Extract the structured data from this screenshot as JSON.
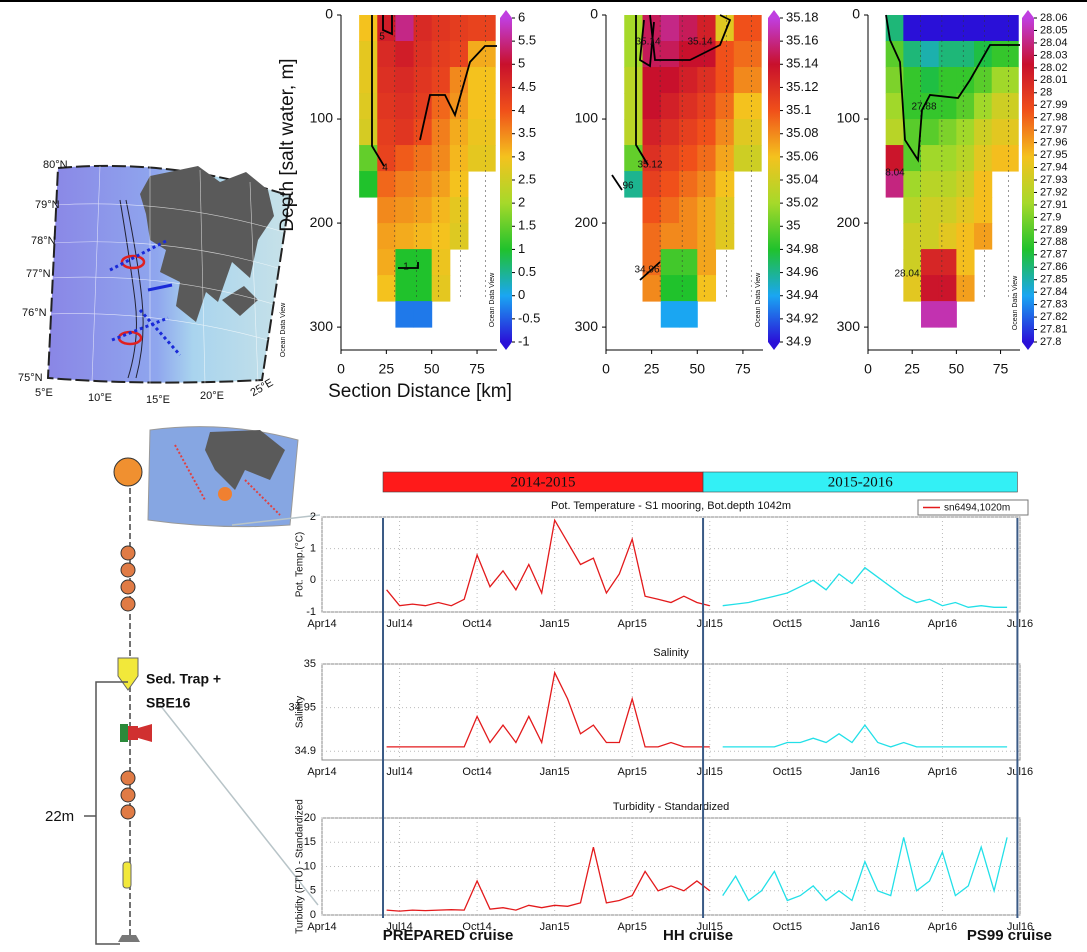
{
  "map": {
    "lat_labels": [
      "80°N",
      "79°N",
      "78°N",
      "77°N",
      "76°N",
      "75°N"
    ],
    "lon_labels": [
      "5°E",
      "10°E",
      "15°E",
      "20°E",
      "25°E"
    ],
    "watermark": "Ocean Data View"
  },
  "mooring": {
    "labels": [
      "Sed. Trap +",
      "SBE16"
    ],
    "length_label": "22m"
  },
  "chart_data": [
    {
      "type": "heatmap",
      "ylabel": "Depth [salt water, m]",
      "xlabel": "Section Distance [km]",
      "watermark": "Ocean Data View",
      "xlim": [
        0,
        86
      ],
      "ylim": [
        0,
        322
      ],
      "xticks": [
        0,
        25,
        50,
        75
      ],
      "yticks": [
        0,
        100,
        200,
        300
      ],
      "x_edges": [
        10,
        20,
        30,
        40,
        50,
        60,
        70,
        85
      ],
      "y_edges": [
        0,
        25,
        50,
        75,
        100,
        125,
        150,
        175,
        200,
        225,
        250,
        275,
        300
      ],
      "values": [
        [
          3.0,
          4.8,
          5.5,
          4.6,
          4.4,
          4.3,
          4.2
        ],
        [
          2.8,
          4.6,
          4.8,
          4.5,
          4.3,
          4.2,
          3.2
        ],
        [
          2.8,
          4.5,
          4.6,
          4.4,
          4.2,
          3.5,
          3.0
        ],
        [
          2.7,
          4.4,
          4.5,
          4.3,
          3.8,
          3.4,
          3.0
        ],
        [
          2.6,
          4.3,
          4.4,
          4.1,
          3.6,
          3.2,
          2.9
        ],
        [
          1.5,
          4.2,
          3.9,
          3.7,
          3.5,
          3.1,
          2.8
        ],
        [
          1.0,
          3.8,
          3.6,
          3.5,
          3.3,
          3.0,
          null
        ],
        [
          null,
          3.5,
          3.4,
          3.3,
          3.1,
          2.8,
          null
        ],
        [
          null,
          3.3,
          3.2,
          3.1,
          3.0,
          2.7,
          null
        ],
        [
          null,
          3.2,
          1.0,
          1.0,
          2.9,
          null,
          null
        ],
        [
          null,
          3.0,
          1.0,
          1.0,
          2.8,
          null,
          null
        ],
        [
          null,
          null,
          -0.3,
          -0.3,
          null,
          null,
          null
        ]
      ],
      "clim": [
        -1,
        6
      ],
      "cticks": [
        -1,
        -0.5,
        0,
        0.5,
        1,
        1.5,
        2,
        2.5,
        3,
        3.5,
        4,
        4.5,
        5,
        5.5,
        6
      ],
      "colorscale": [
        "#2a10d8",
        "#1aa6f2",
        "#20c22c",
        "#a6d92a",
        "#f4c21e",
        "#f0501a",
        "#c8102c",
        "#c03ee0"
      ],
      "contour_labels": [
        "5",
        "4",
        "1"
      ]
    },
    {
      "type": "heatmap",
      "watermark": "Ocean Data View",
      "xlim": [
        0,
        86
      ],
      "ylim": [
        0,
        322
      ],
      "xticks": [
        0,
        25,
        50,
        75
      ],
      "yticks": [
        0,
        100,
        200,
        300
      ],
      "x_edges": [
        10,
        20,
        30,
        40,
        50,
        60,
        70,
        85
      ],
      "y_edges": [
        0,
        25,
        50,
        75,
        100,
        125,
        150,
        175,
        200,
        225,
        250,
        275,
        300
      ],
      "values": [
        [
          35.02,
          35.15,
          35.16,
          35.15,
          35.13,
          35.05,
          35.1
        ],
        [
          35.02,
          35.15,
          35.15,
          35.14,
          35.14,
          35.1,
          35.09
        ],
        [
          35.03,
          35.14,
          35.14,
          35.13,
          35.12,
          35.1,
          35.08
        ],
        [
          35.03,
          35.14,
          35.13,
          35.12,
          35.11,
          35.09,
          35.06
        ],
        [
          35.03,
          35.13,
          35.12,
          35.11,
          35.1,
          35.08,
          35.05
        ],
        [
          35.0,
          35.12,
          35.11,
          35.1,
          35.09,
          35.07,
          35.04
        ],
        [
          34.96,
          35.11,
          35.1,
          35.09,
          35.08,
          35.06,
          null
        ],
        [
          null,
          35.1,
          35.09,
          35.08,
          35.07,
          35.05,
          null
        ],
        [
          null,
          35.09,
          35.08,
          35.08,
          35.07,
          35.05,
          null
        ],
        [
          null,
          35.09,
          34.99,
          34.99,
          35.07,
          null,
          null
        ],
        [
          null,
          35.08,
          34.98,
          34.98,
          35.06,
          null,
          null
        ],
        [
          null,
          null,
          34.94,
          34.94,
          null,
          null,
          null
        ]
      ],
      "clim": [
        34.9,
        35.18
      ],
      "cticks": [
        34.9,
        34.92,
        34.94,
        34.96,
        34.98,
        35,
        35.02,
        35.04,
        35.06,
        35.08,
        35.1,
        35.12,
        35.14,
        35.16,
        35.18
      ],
      "colorscale": [
        "#2a10d8",
        "#1aa6f2",
        "#20c22c",
        "#a6d92a",
        "#f4c21e",
        "#f0501a",
        "#c8102c",
        "#c03ee0"
      ],
      "contour_labels": [
        "35.14",
        "35.14",
        "35.12",
        "96",
        "34.96"
      ]
    },
    {
      "type": "heatmap",
      "watermark": "Ocean Data View",
      "xlim": [
        0,
        86
      ],
      "ylim": [
        0,
        322
      ],
      "xticks": [
        0,
        25,
        50,
        75
      ],
      "yticks": [
        0,
        100,
        200,
        300
      ],
      "x_edges": [
        10,
        20,
        30,
        40,
        50,
        60,
        70,
        85
      ],
      "y_edges": [
        0,
        25,
        50,
        75,
        100,
        125,
        150,
        175,
        200,
        225,
        250,
        275,
        300
      ],
      "values": [
        [
          27.86,
          27.8,
          27.8,
          27.8,
          27.8,
          27.8,
          27.8
        ],
        [
          27.89,
          27.86,
          27.85,
          27.86,
          27.86,
          27.87,
          27.88
        ],
        [
          27.9,
          27.88,
          27.87,
          27.88,
          27.88,
          27.89,
          27.91
        ],
        [
          27.91,
          27.88,
          27.88,
          27.88,
          27.89,
          27.91,
          27.93
        ],
        [
          27.92,
          27.89,
          27.89,
          27.9,
          27.91,
          27.93,
          27.94
        ],
        [
          28.02,
          27.89,
          27.91,
          27.91,
          27.92,
          27.94,
          27.95
        ],
        [
          28.04,
          27.91,
          27.92,
          27.92,
          27.93,
          27.95,
          null
        ],
        [
          null,
          27.92,
          27.93,
          27.93,
          27.94,
          27.95,
          null
        ],
        [
          null,
          27.93,
          27.93,
          27.94,
          27.95,
          27.96,
          null
        ],
        [
          null,
          27.93,
          28.01,
          28.01,
          27.95,
          null,
          null
        ],
        [
          null,
          27.94,
          28.02,
          28.02,
          27.96,
          null,
          null
        ],
        [
          null,
          null,
          28.05,
          28.05,
          null,
          null,
          null
        ]
      ],
      "clim": [
        27.8,
        28.06
      ],
      "cticks": [
        27.8,
        27.81,
        27.82,
        27.83,
        27.84,
        27.85,
        27.86,
        27.87,
        27.88,
        27.89,
        27.9,
        27.91,
        27.92,
        27.93,
        27.94,
        27.95,
        27.96,
        27.97,
        27.98,
        27.99,
        28,
        28.01,
        28.02,
        28.03,
        28.04,
        28.05,
        28.06
      ],
      "colorscale": [
        "#2a10d8",
        "#1aa6f2",
        "#20c22c",
        "#a6d92a",
        "#f4c21e",
        "#f0501a",
        "#c8102c",
        "#c03ee0"
      ],
      "contour_labels": [
        "27.88",
        "8.04",
        "28.04"
      ]
    },
    {
      "type": "line",
      "title": "Pot. Temperature - S1 mooring, Bot.depth 1042m",
      "ylabel": "Pot. Temp.(°C)",
      "xlim": [
        0,
        27
      ],
      "xticks": [
        {
          "value": 0,
          "label": "Apr14"
        },
        {
          "value": 3,
          "label": "Jul14"
        },
        {
          "value": 6,
          "label": "Oct14"
        },
        {
          "value": 9,
          "label": "Jan15"
        },
        {
          "value": 12,
          "label": "Apr15"
        },
        {
          "value": 15,
          "label": "Jul15"
        },
        {
          "value": 18,
          "label": "Oct15"
        },
        {
          "value": 21,
          "label": "Jan16"
        },
        {
          "value": 24,
          "label": "Apr16"
        },
        {
          "value": 27,
          "label": "Jul16"
        }
      ],
      "ylim": [
        -1,
        2
      ],
      "yticks": [
        -1,
        0,
        1,
        2
      ],
      "grid": true,
      "legend": "upper right",
      "periods": [
        {
          "label": "2014-2015",
          "color": "#ff1a1a",
          "start": 2.36,
          "end": 14.74
        },
        {
          "label": "2015-2016",
          "color": "#33f0f5",
          "start": 14.74,
          "end": 26.9
        }
      ],
      "cruises": [
        {
          "label": "PREPARED cruise",
          "x": 2.36
        },
        {
          "label": "HH cruise",
          "x": 14.74
        },
        {
          "label": "PS99 cruise",
          "x": 26.9
        }
      ],
      "series": [
        {
          "name": "sn6494,1020m",
          "color": "#e31a1c",
          "x": [
            2.5,
            3,
            3.5,
            4,
            4.5,
            5,
            5.5,
            6,
            6.5,
            7,
            7.5,
            8,
            8.5,
            9,
            9.5,
            10,
            10.5,
            11,
            11.5,
            12,
            12.5,
            13,
            13.5,
            14,
            14.5,
            15
          ],
          "values": [
            -0.3,
            -0.8,
            -0.75,
            -0.8,
            -0.7,
            -0.8,
            -0.6,
            0.8,
            -0.2,
            0.3,
            -0.3,
            0.5,
            -0.4,
            1.9,
            1.2,
            0.5,
            0.7,
            -0.4,
            0.2,
            1.3,
            -0.5,
            -0.6,
            -0.7,
            -0.5,
            -0.7,
            -0.8
          ]
        },
        {
          "color": "#22e0e8",
          "x": [
            15.5,
            16,
            16.5,
            17,
            17.5,
            18,
            18.5,
            19,
            19.5,
            20,
            20.5,
            21,
            21.5,
            22,
            22.5,
            23,
            23.5,
            24,
            24.5,
            25,
            25.5,
            26,
            26.5
          ],
          "values": [
            -0.8,
            -0.75,
            -0.7,
            -0.6,
            -0.5,
            -0.4,
            -0.2,
            0,
            -0.3,
            0.2,
            -0.1,
            0.4,
            0.1,
            -0.2,
            -0.5,
            -0.7,
            -0.6,
            -0.8,
            -0.7,
            -0.85,
            -0.8,
            -0.85,
            -0.85
          ]
        }
      ]
    },
    {
      "type": "line",
      "title": "Salinity",
      "ylabel": "Salinity",
      "xlim": [
        0,
        27
      ],
      "xticks": [
        {
          "value": 0,
          "label": "Apr14"
        },
        {
          "value": 3,
          "label": "Jul14"
        },
        {
          "value": 6,
          "label": "Oct14"
        },
        {
          "value": 9,
          "label": "Jan15"
        },
        {
          "value": 12,
          "label": "Apr15"
        },
        {
          "value": 15,
          "label": "Jul15"
        },
        {
          "value": 18,
          "label": "Oct15"
        },
        {
          "value": 21,
          "label": "Jan16"
        },
        {
          "value": 24,
          "label": "Apr16"
        },
        {
          "value": 27,
          "label": "Jul16"
        }
      ],
      "ylim": [
        34.89,
        35
      ],
      "yticks": [
        34.9,
        34.95,
        35
      ],
      "grid": true,
      "series": [
        {
          "color": "#e31a1c",
          "x": [
            2.5,
            3,
            3.5,
            4,
            4.5,
            5,
            5.5,
            6,
            6.5,
            7,
            7.5,
            8,
            8.5,
            9,
            9.5,
            10,
            10.5,
            11,
            11.5,
            12,
            12.5,
            13,
            13.5,
            14,
            14.5,
            15
          ],
          "values": [
            34.905,
            34.905,
            34.905,
            34.905,
            34.905,
            34.905,
            34.905,
            34.94,
            34.91,
            34.93,
            34.91,
            34.94,
            34.91,
            34.99,
            34.96,
            34.92,
            34.93,
            34.91,
            34.91,
            34.96,
            34.905,
            34.905,
            34.91,
            34.905,
            34.905,
            34.905
          ]
        },
        {
          "color": "#22e0e8",
          "x": [
            15.5,
            16,
            16.5,
            17,
            17.5,
            18,
            18.5,
            19,
            19.5,
            20,
            20.5,
            21,
            21.5,
            22,
            22.5,
            23,
            23.5,
            24,
            24.5,
            25,
            25.5,
            26,
            26.5
          ],
          "values": [
            34.905,
            34.905,
            34.905,
            34.905,
            34.905,
            34.91,
            34.91,
            34.915,
            34.91,
            34.92,
            34.91,
            34.93,
            34.91,
            34.905,
            34.91,
            34.905,
            34.905,
            34.905,
            34.905,
            34.905,
            34.905,
            34.905,
            34.905
          ]
        }
      ]
    },
    {
      "type": "line",
      "title": "Turbidity - Standardized",
      "ylabel": "Turbidity (FTU) - Standardized",
      "xlim": [
        0,
        27
      ],
      "xticks": [
        {
          "value": 0,
          "label": "Apr14"
        },
        {
          "value": 3,
          "label": "Jul14"
        },
        {
          "value": 6,
          "label": "Oct14"
        },
        {
          "value": 9,
          "label": "Jan15"
        },
        {
          "value": 12,
          "label": "Apr15"
        },
        {
          "value": 15,
          "label": "Jul15"
        },
        {
          "value": 18,
          "label": "Oct15"
        },
        {
          "value": 21,
          "label": "Jan16"
        },
        {
          "value": 24,
          "label": "Apr16"
        },
        {
          "value": 27,
          "label": "Jul16"
        }
      ],
      "ylim": [
        0,
        20
      ],
      "yticks": [
        0,
        5,
        10,
        15,
        20
      ],
      "grid": true,
      "series": [
        {
          "color": "#e31a1c",
          "x": [
            2.5,
            3,
            3.5,
            4,
            4.5,
            5,
            5.5,
            6,
            6.5,
            7,
            7.5,
            8,
            8.5,
            9,
            9.5,
            10,
            10.5,
            11,
            11.5,
            12,
            12.5,
            13,
            13.5,
            14,
            14.5,
            15
          ],
          "values": [
            1,
            0.8,
            1,
            0.9,
            1,
            1.1,
            1,
            7,
            1.2,
            1.5,
            1,
            2,
            1.5,
            2,
            1.8,
            2.5,
            14,
            2.5,
            3,
            4,
            9,
            5,
            6,
            5,
            7,
            5
          ]
        },
        {
          "color": "#22e0e8",
          "x": [
            15.5,
            16,
            16.5,
            17,
            17.5,
            18,
            18.5,
            19,
            19.5,
            20,
            20.5,
            21,
            21.5,
            22,
            22.5,
            23,
            23.5,
            24,
            24.5,
            25,
            25.5,
            26,
            26.5
          ],
          "values": [
            4,
            8,
            3,
            5,
            9,
            3,
            4,
            6,
            3,
            5,
            3,
            11,
            5,
            4,
            16,
            5,
            7,
            13,
            4,
            6,
            14,
            5,
            16
          ]
        }
      ]
    }
  ]
}
